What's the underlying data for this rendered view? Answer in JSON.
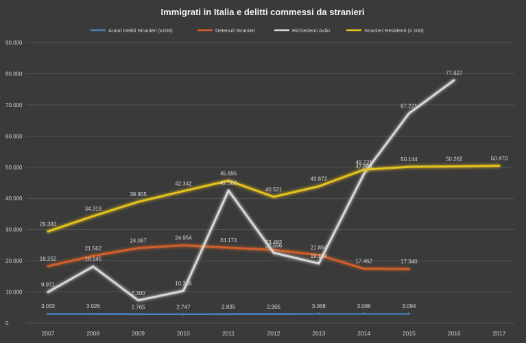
{
  "chart_data": {
    "type": "line",
    "title": "Immigrati in Italia e delitti commessi da stranieri",
    "xlabel": "",
    "ylabel": "",
    "ylim": [
      0,
      90000
    ],
    "yticks": [
      "0",
      "10.000",
      "20.000",
      "30.000",
      "40.000",
      "50.000",
      "60.000",
      "70.000",
      "80.000",
      "90.000"
    ],
    "categories": [
      "2007",
      "2008",
      "2009",
      "2010",
      "2011",
      "2012",
      "2013",
      "2014",
      "2015",
      "2016",
      "2017"
    ],
    "grid": true,
    "legend_position": "top",
    "series": [
      {
        "name": "Autori Delitti Stranieri (x100)",
        "color": "#4a7fc0",
        "values": [
          3033,
          3026,
          2765,
          2747,
          2835,
          2905,
          3068,
          3086,
          3094,
          null,
          null
        ],
        "labels": [
          "3.033",
          "3.026",
          "2.765",
          "2.747",
          "2.835",
          "2.905",
          "3.068",
          "3.086",
          "3.094",
          "",
          ""
        ]
      },
      {
        "name": "Detenuti Stranieri",
        "color": "#d0602a",
        "values": [
          18252,
          21562,
          24067,
          24954,
          24174,
          23492,
          21854,
          17462,
          17340,
          null,
          null
        ],
        "labels": [
          "18.252",
          "21.562",
          "24.067",
          "24.954",
          "24.174",
          "23.492",
          "21.854",
          "17.462",
          "17.340",
          "",
          ""
        ]
      },
      {
        "name": "Richiedenti Asilo",
        "color": "#d8d8d8",
        "values": [
          9971,
          18145,
          7300,
          10336,
          42562,
          22556,
          19124,
          47854,
          67271,
          77927,
          null
        ],
        "labels": [
          "9.971",
          "18.145",
          "7.300",
          "10.336",
          "42.562",
          "22.556",
          "19.124",
          "47.854",
          "67.271",
          "77.927",
          ""
        ]
      },
      {
        "name": "Stranieri Residenti (x 100)",
        "color": "#e6c21e",
        "values": [
          29383,
          34319,
          38905,
          42342,
          45695,
          40521,
          43872,
          49221,
          50144,
          50262,
          50470
        ],
        "labels": [
          "29.383",
          "34.319",
          "38.905",
          "42.342",
          "45.695",
          "40.521",
          "43.872",
          "49.221",
          "50.144",
          "50.262",
          "50.470"
        ]
      }
    ]
  }
}
